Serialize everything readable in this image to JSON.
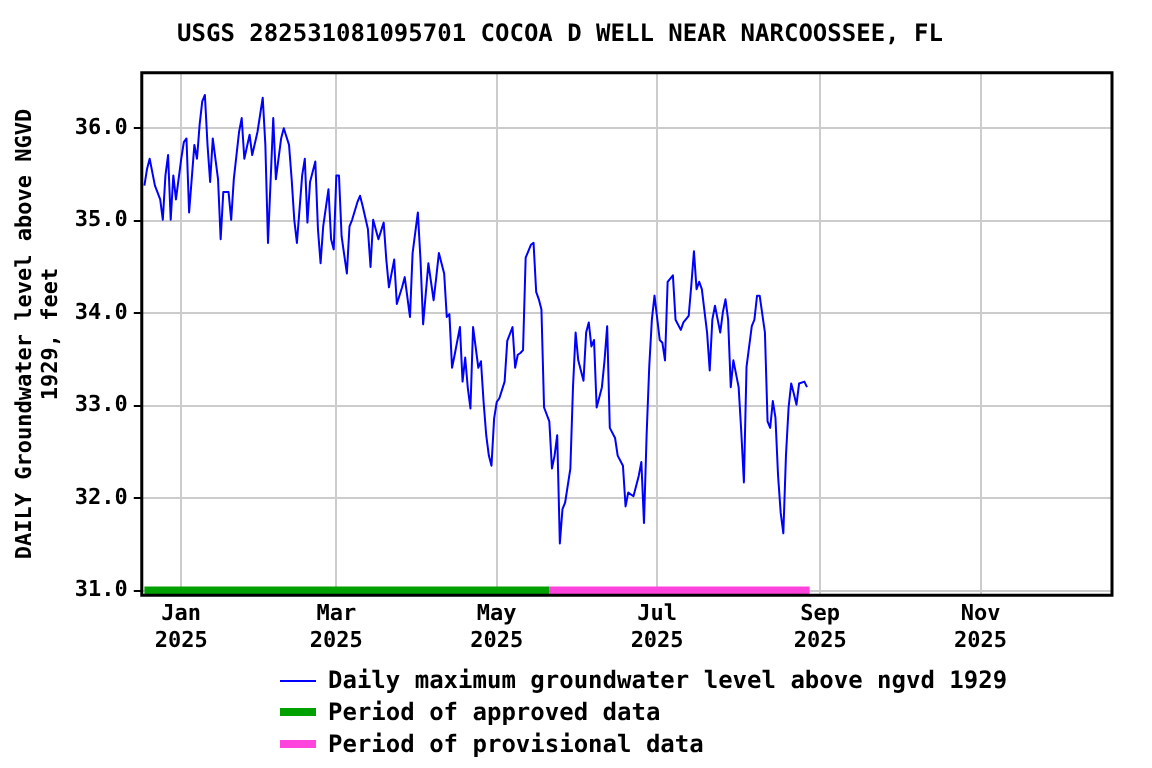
{
  "chart_data": {
    "type": "line",
    "title": "USGS 282531081095701 COCOA D WELL NEAR NARCOOSSEE, FL",
    "ylabel": "DAILY Groundwater level above NGVD\n1929, feet",
    "xlim": [
      "2024-12-17",
      "2025-12-21"
    ],
    "xticks": [
      {
        "value": "2025-01-01",
        "label": "Jan\n2025"
      },
      {
        "value": "2025-03-01",
        "label": "Mar\n2025"
      },
      {
        "value": "2025-05-01",
        "label": "May\n2025"
      },
      {
        "value": "2025-07-01",
        "label": "Jul\n2025"
      },
      {
        "value": "2025-09-01",
        "label": "Sep\n2025"
      },
      {
        "value": "2025-11-01",
        "label": "Nov\n2025"
      }
    ],
    "ylim": [
      30.95,
      36.6
    ],
    "yticks": [
      {
        "value": 31,
        "label": "31.0"
      },
      {
        "value": 32,
        "label": "32.0"
      },
      {
        "value": 33,
        "label": "33.0"
      },
      {
        "value": 34,
        "label": "34.0"
      },
      {
        "value": 35,
        "label": "35.0"
      },
      {
        "value": 36,
        "label": "36.0"
      }
    ],
    "grid": true,
    "legend": "bottom",
    "marker": "none",
    "line_style": "solid",
    "series": [
      {
        "name": "Daily maximum groundwater level above ngvd 1929",
        "color": "#0000ff",
        "x": [
          "2024-12-18",
          "2024-12-19",
          "2024-12-20",
          "2024-12-22",
          "2024-12-24",
          "2024-12-25",
          "2024-12-26",
          "2024-12-27",
          "2024-12-28",
          "2024-12-29",
          "2024-12-30",
          "2025-01-01",
          "2025-01-02",
          "2025-01-03",
          "2025-01-04",
          "2025-01-06",
          "2025-01-07",
          "2025-01-08",
          "2025-01-09",
          "2025-01-10",
          "2025-01-11",
          "2025-01-12",
          "2025-01-13",
          "2025-01-15",
          "2025-01-16",
          "2025-01-17",
          "2025-01-19",
          "2025-01-20",
          "2025-01-21",
          "2025-01-23",
          "2025-01-24",
          "2025-01-25",
          "2025-01-27",
          "2025-01-28",
          "2025-01-30",
          "2025-02-01",
          "2025-02-02",
          "2025-02-03",
          "2025-02-05",
          "2025-02-06",
          "2025-02-08",
          "2025-02-09",
          "2025-02-11",
          "2025-02-12",
          "2025-02-13",
          "2025-02-14",
          "2025-02-16",
          "2025-02-17",
          "2025-02-18",
          "2025-02-19",
          "2025-02-21",
          "2025-02-22",
          "2025-02-23",
          "2025-02-24",
          "2025-02-26",
          "2025-02-27",
          "2025-02-28",
          "2025-03-01",
          "2025-03-02",
          "2025-03-03",
          "2025-03-05",
          "2025-03-06",
          "2025-03-07",
          "2025-03-09",
          "2025-03-10",
          "2025-03-11",
          "2025-03-13",
          "2025-03-14",
          "2025-03-15",
          "2025-03-17",
          "2025-03-19",
          "2025-03-20",
          "2025-03-21",
          "2025-03-23",
          "2025-03-24",
          "2025-03-26",
          "2025-03-27",
          "2025-03-29",
          "2025-03-30",
          "2025-04-01",
          "2025-04-02",
          "2025-04-03",
          "2025-04-05",
          "2025-04-07",
          "2025-04-08",
          "2025-04-09",
          "2025-04-11",
          "2025-04-12",
          "2025-04-13",
          "2025-04-14",
          "2025-04-15",
          "2025-04-17",
          "2025-04-18",
          "2025-04-19",
          "2025-04-20",
          "2025-04-21",
          "2025-04-22",
          "2025-04-24",
          "2025-04-25",
          "2025-04-26",
          "2025-04-27",
          "2025-04-28",
          "2025-04-29",
          "2025-04-30",
          "2025-05-01",
          "2025-05-02",
          "2025-05-04",
          "2025-05-05",
          "2025-05-07",
          "2025-05-08",
          "2025-05-09",
          "2025-05-10",
          "2025-05-11",
          "2025-05-12",
          "2025-05-14",
          "2025-05-15",
          "2025-05-16",
          "2025-05-17",
          "2025-05-18",
          "2025-05-19",
          "2025-05-21",
          "2025-05-22",
          "2025-05-23",
          "2025-05-24",
          "2025-05-25",
          "2025-05-26",
          "2025-05-27",
          "2025-05-29",
          "2025-05-30",
          "2025-05-31",
          "2025-06-01",
          "2025-06-03",
          "2025-06-04",
          "2025-06-05",
          "2025-06-06",
          "2025-06-07",
          "2025-06-08",
          "2025-06-10",
          "2025-06-11",
          "2025-06-12",
          "2025-06-13",
          "2025-06-15",
          "2025-06-16",
          "2025-06-18",
          "2025-06-19",
          "2025-06-20",
          "2025-06-22",
          "2025-06-24",
          "2025-06-25",
          "2025-06-26",
          "2025-06-27",
          "2025-06-28",
          "2025-06-29",
          "2025-06-30",
          "2025-07-02",
          "2025-07-03",
          "2025-07-04",
          "2025-07-05",
          "2025-07-07",
          "2025-07-08",
          "2025-07-10",
          "2025-07-11",
          "2025-07-13",
          "2025-07-14",
          "2025-07-15",
          "2025-07-16",
          "2025-07-17",
          "2025-07-18",
          "2025-07-20",
          "2025-07-21",
          "2025-07-22",
          "2025-07-23",
          "2025-07-25",
          "2025-07-26",
          "2025-07-27",
          "2025-07-28",
          "2025-07-29",
          "2025-07-30",
          "2025-08-01",
          "2025-08-02",
          "2025-08-03",
          "2025-08-04",
          "2025-08-06",
          "2025-08-07",
          "2025-08-08",
          "2025-08-09",
          "2025-08-11",
          "2025-08-12",
          "2025-08-13",
          "2025-08-14",
          "2025-08-15",
          "2025-08-16",
          "2025-08-17",
          "2025-08-18",
          "2025-08-19",
          "2025-08-20",
          "2025-08-21",
          "2025-08-22",
          "2025-08-23",
          "2025-08-24",
          "2025-08-26",
          "2025-08-27"
        ],
        "values": [
          35.38,
          35.56,
          35.67,
          35.38,
          35.23,
          35.01,
          35.49,
          35.71,
          35.01,
          35.49,
          35.23,
          35.67,
          35.85,
          35.89,
          35.09,
          35.82,
          35.67,
          36.04,
          36.29,
          36.36,
          35.82,
          35.42,
          35.89,
          35.45,
          34.8,
          35.31,
          35.31,
          35.01,
          35.45,
          35.96,
          36.11,
          35.67,
          35.93,
          35.71,
          35.96,
          36.33,
          35.82,
          34.76,
          36.11,
          35.45,
          35.89,
          36.0,
          35.82,
          35.45,
          35.01,
          34.76,
          35.49,
          35.67,
          34.98,
          35.42,
          35.64,
          34.91,
          34.54,
          34.94,
          35.34,
          34.8,
          34.69,
          35.49,
          35.49,
          34.83,
          34.43,
          34.94,
          35.01,
          35.2,
          35.27,
          35.16,
          34.91,
          34.5,
          35.01,
          34.8,
          34.98,
          34.58,
          34.28,
          34.58,
          34.1,
          34.28,
          34.39,
          33.96,
          34.65,
          35.09,
          34.58,
          33.88,
          34.54,
          34.14,
          34.39,
          34.65,
          34.43,
          33.96,
          33.99,
          33.41,
          33.55,
          33.85,
          33.26,
          33.52,
          33.19,
          32.97,
          33.85,
          33.41,
          33.48,
          33.04,
          32.68,
          32.46,
          32.35,
          32.86,
          33.04,
          33.08,
          33.26,
          33.7,
          33.85,
          33.41,
          33.55,
          33.57,
          33.6,
          34.6,
          34.74,
          34.76,
          34.23,
          34.15,
          34.04,
          32.98,
          32.83,
          32.32,
          32.46,
          32.68,
          31.51,
          31.88,
          31.95,
          32.32,
          33.2,
          33.79,
          33.49,
          33.27,
          33.79,
          33.9,
          33.64,
          33.71,
          32.98,
          33.2,
          33.49,
          33.86,
          32.76,
          32.65,
          32.46,
          32.35,
          31.91,
          32.06,
          32.02,
          32.24,
          32.39,
          31.73,
          32.68,
          33.42,
          33.93,
          34.19,
          33.71,
          33.68,
          33.49,
          34.34,
          34.41,
          33.93,
          33.82,
          33.9,
          33.97,
          34.3,
          34.67,
          34.26,
          34.34,
          34.26,
          33.79,
          33.38,
          33.93,
          34.08,
          33.79,
          34.01,
          34.15,
          33.93,
          33.2,
          33.49,
          33.2,
          32.72,
          32.17,
          33.42,
          33.86,
          33.93,
          34.19,
          34.19,
          33.79,
          32.83,
          32.76,
          33.05,
          32.87,
          32.24,
          31.84,
          31.62,
          32.46,
          32.98,
          33.24,
          33.13,
          33.01,
          33.24,
          33.26,
          33.2
        ]
      },
      {
        "name": "Period of approved data",
        "color": "#00a000",
        "x": [
          "2024-12-18",
          "2025-05-21"
        ],
        "values": [
          31.0,
          31.0
        ]
      },
      {
        "name": "Period of provisional data",
        "color": "#ff44dd",
        "x": [
          "2025-05-21",
          "2025-08-28"
        ],
        "values": [
          31.0,
          31.0
        ]
      }
    ]
  }
}
